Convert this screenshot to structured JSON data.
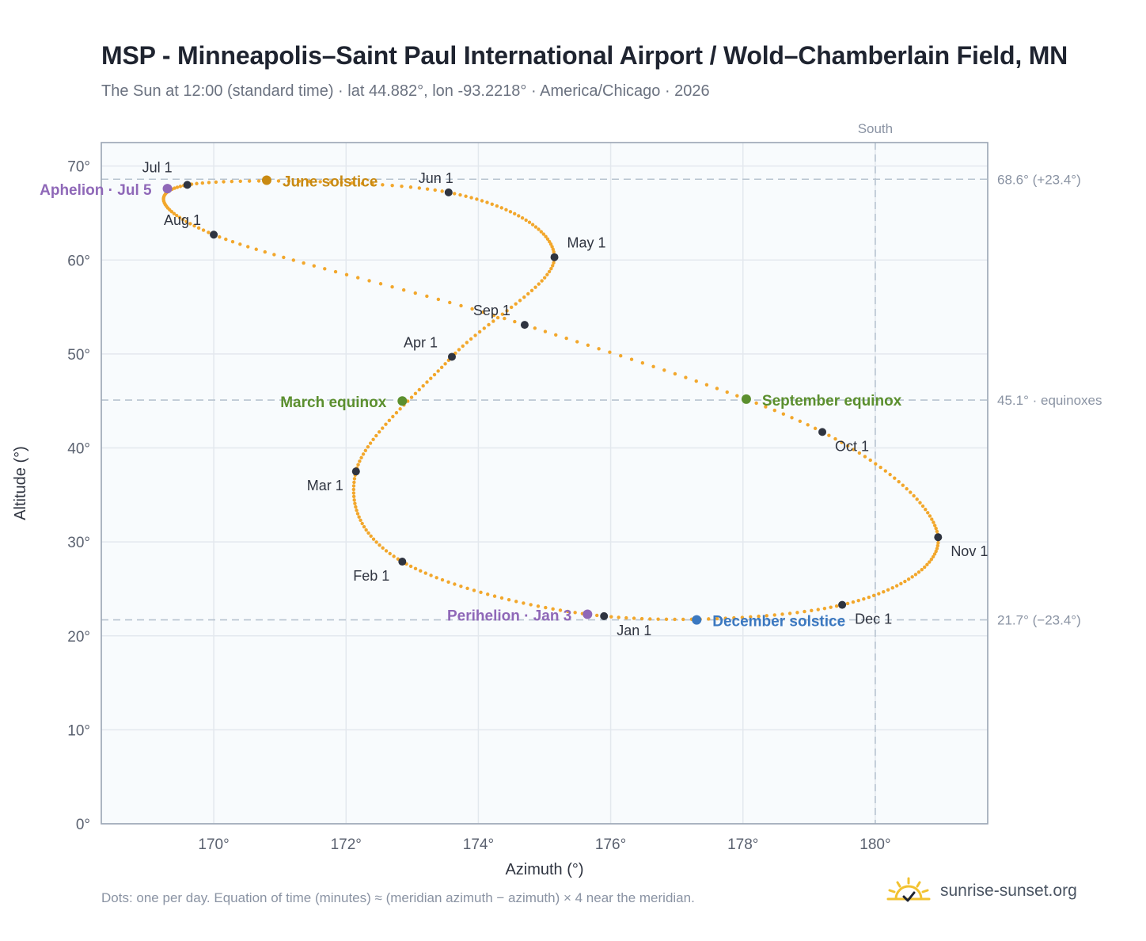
{
  "header": {
    "title": "MSP - Minneapolis–Saint Paul International Airport / Wold–Chamberlain Field, MN",
    "subtitle": "The Sun at 12:00 (standard time) · lat 44.882°, lon -93.2218° · America/Chicago · 2026"
  },
  "footer": {
    "note": "Dots: one per day. Equation of time (minutes) ≈ (meridian azimuth − azimuth) × 4 near the meridian.",
    "brand": "sunrise-sunset.org"
  },
  "colors": {
    "analemma": "#f2a72c",
    "month_marker": "#2f3440",
    "june_solstice": "#c98a12",
    "december_solstice": "#3b78c0",
    "equinox": "#5b8f2e",
    "apsis": "#8f68b8",
    "grid": "#e3e8ee",
    "reference_line": "#b8c4d0",
    "plot_bg": "#f8fbfd",
    "brand_sun": "#f2c230"
  },
  "icons": {
    "brand": "sun-check-icon"
  },
  "chart_data": {
    "type": "scatter",
    "xlabel": "Azimuth (°)",
    "ylabel": "Altitude (°)",
    "xlim": [
      168.3,
      181.7
    ],
    "ylim": [
      0,
      72.5
    ],
    "x_ticks": [
      170,
      172,
      174,
      176,
      178,
      180
    ],
    "x_tick_labels": [
      "170°",
      "172°",
      "174°",
      "176°",
      "178°",
      "180°"
    ],
    "y_ticks": [
      0,
      10,
      20,
      30,
      40,
      50,
      60,
      70
    ],
    "y_tick_labels": [
      "0°",
      "10°",
      "20°",
      "30°",
      "40°",
      "50°",
      "60°",
      "70°"
    ],
    "grid": true,
    "meridian": {
      "x": 180,
      "label": "South"
    },
    "reference_lines": [
      {
        "y": 68.6,
        "label": "68.6° (+23.4°)"
      },
      {
        "y": 45.1,
        "label": "45.1° · equinoxes"
      },
      {
        "y": 21.7,
        "label": "21.7° (−23.4°)"
      }
    ],
    "month_markers": [
      {
        "label": "Jan 1",
        "x": 175.9,
        "y": 22.1
      },
      {
        "label": "Feb 1",
        "x": 172.85,
        "y": 27.9
      },
      {
        "label": "Mar 1",
        "x": 172.15,
        "y": 37.5
      },
      {
        "label": "Apr 1",
        "x": 173.6,
        "y": 49.7
      },
      {
        "label": "May 1",
        "x": 175.15,
        "y": 60.3
      },
      {
        "label": "Jun 1",
        "x": 173.55,
        "y": 67.2
      },
      {
        "label": "Jul 1",
        "x": 169.6,
        "y": 68.0
      },
      {
        "label": "Aug 1",
        "x": 170.0,
        "y": 62.7
      },
      {
        "label": "Sep 1",
        "x": 174.7,
        "y": 53.1
      },
      {
        "label": "Oct 1",
        "x": 179.2,
        "y": 41.7
      },
      {
        "label": "Nov 1",
        "x": 180.95,
        "y": 30.5
      },
      {
        "label": "Dec 1",
        "x": 179.5,
        "y": 23.3
      }
    ],
    "events": [
      {
        "label": "June solstice",
        "x": 170.8,
        "y": 68.5,
        "kind": "june_solstice"
      },
      {
        "label": "December solstice",
        "x": 177.3,
        "y": 21.7,
        "kind": "december_solstice"
      },
      {
        "label": "March equinox",
        "x": 172.85,
        "y": 45.0,
        "kind": "equinox"
      },
      {
        "label": "September equinox",
        "x": 178.05,
        "y": 45.2,
        "kind": "equinox"
      },
      {
        "label": "Perihelion · Jan 3",
        "x": 175.65,
        "y": 22.3,
        "kind": "apsis"
      },
      {
        "label": "Aphelion · Jul 5",
        "x": 169.3,
        "y": 67.6,
        "kind": "apsis"
      }
    ]
  }
}
